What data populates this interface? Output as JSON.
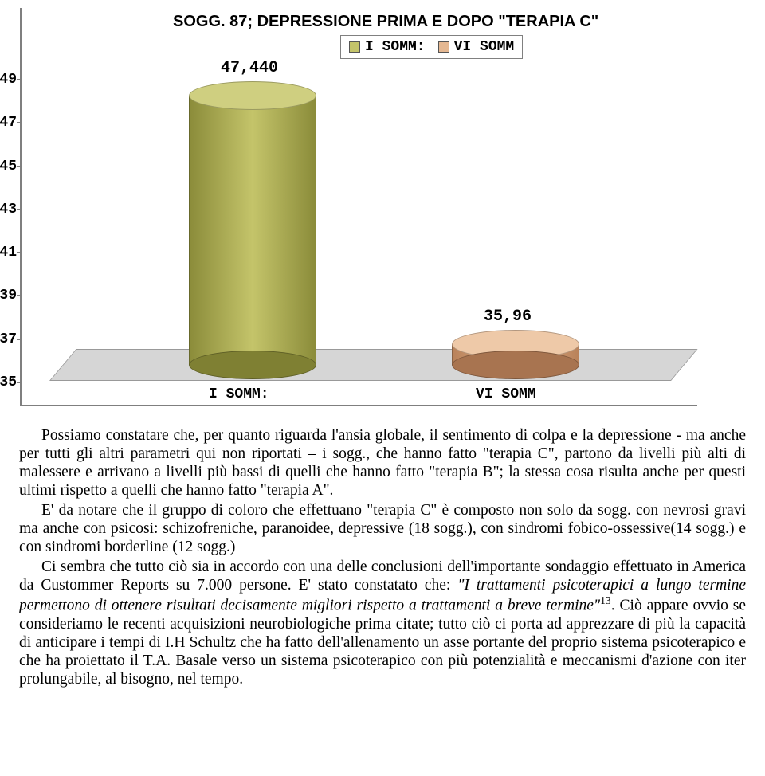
{
  "chart": {
    "type": "3d-cylinder-bar",
    "title": "SOGG. 87; DEPRESSIONE PRIMA E DOPO \"TERAPIA C\"",
    "legend": {
      "items": [
        "I SOMM:",
        "VI SOMM"
      ]
    },
    "ylim": [
      35,
      49
    ],
    "ytick_step": 2,
    "yticks": [
      49,
      47,
      45,
      43,
      41,
      39,
      37,
      35
    ],
    "axis_color": "#7f7f7f",
    "floor_color": "#cfcfcf",
    "background_color": "#ffffff",
    "title_fontsize": 20,
    "tick_fontfamily": "Courier New",
    "tick_fontsize": 18,
    "series": [
      {
        "name": "I SOMM:",
        "value": 47.44,
        "value_label": "47,440",
        "body_gradient": [
          "#8b8c3a",
          "#c4c46a",
          "#8b8c3a"
        ],
        "top_color": "#cfcf80",
        "bot_color": "#7f8033"
      },
      {
        "name": "VI SOMM",
        "value": 35.96,
        "value_label": "35,96",
        "body_gradient": [
          "#b9825a",
          "#e5b892",
          "#b9825a"
        ],
        "top_color": "#eec9a8",
        "bot_color": "#a87450"
      }
    ],
    "xlabels": [
      "I SOMM:",
      "VI SOMM"
    ]
  },
  "text": {
    "p1": "Possiamo constatare che, per quanto riguarda l'ansia globale, il sentimento di colpa e la depressione - ma anche per tutti gli altri parametri qui non riportati – i sogg., che hanno fatto \"terapia C\", partono da livelli più alti di malessere e arrivano a livelli più bassi di quelli che hanno fatto \"terapia B\"; la stessa cosa risulta anche per questi ultimi rispetto a quelli che hanno fatto \"terapia A\".",
    "p2": "E' da notare che il gruppo di coloro che effettuano \"terapia C\" è composto non solo da sogg. con nevrosi gravi ma anche con psicosi: schizofreniche, paranoidee, depressive (18 sogg.), con sindromi fobico-ossessive(14 sogg.) e con sindromi borderline (12 sogg.)",
    "p3a": "Ci sembra che tutto ciò sia in accordo con una delle conclusioni dell'importante sondaggio effettuato in America da Custommer Reports su 7.000 persone. E' stato constatato che: ",
    "p3_italic": "\"I trattamenti psicoterapici a lungo termine permettono di ottenere risultati decisamente migliori rispetto a trattamenti a breve termine\"",
    "p3_sup": "13",
    "p3b": ". Ciò appare ovvio se consideriamo le recenti acquisizioni neurobiologiche prima citate; tutto ciò ci porta ad apprezzare di più la capacità di anticipare i tempi di I.H Schultz che ha fatto dell'allenamento un asse portante del proprio sistema psicoterapico e che ha proiettato il T.A. Basale verso un sistema psicoterapico con più potenzialità e meccanismi d'azione con iter prolungabile, al bisogno, nel tempo."
  }
}
